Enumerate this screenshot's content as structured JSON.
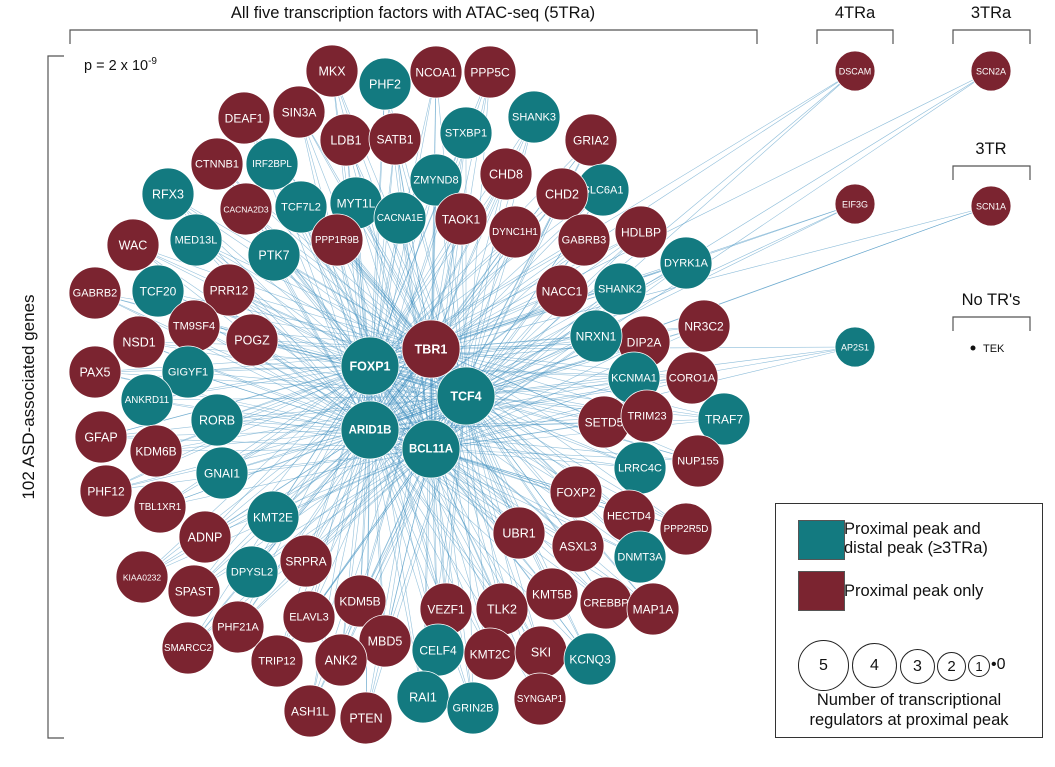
{
  "colors": {
    "teal": "#137a80",
    "maroon": "#7b2430",
    "edge": "#3f8fc0"
  },
  "headers": {
    "main": "All five transcription factors with ATAC-seq (5TRa)",
    "four": "4TRa",
    "three_a": "3TRa",
    "three": "3TR",
    "none": "No TR's"
  },
  "pvalue": {
    "base": "p = 2 x 10",
    "exp": "-9"
  },
  "yaxis_label": "102 ASD-associated genes",
  "hubs": [
    "FOXP1",
    "TBR1",
    "TCF4",
    "ARID1B",
    "BCL11A"
  ],
  "genes": [
    {
      "name": "MKX",
      "type": "proximal_only"
    },
    {
      "name": "PHF2",
      "type": "proximal_distal"
    },
    {
      "name": "NCOA1",
      "type": "proximal_only"
    },
    {
      "name": "PPP5C",
      "type": "proximal_only"
    },
    {
      "name": "DEAF1",
      "type": "proximal_only"
    },
    {
      "name": "SIN3A",
      "type": "proximal_only"
    },
    {
      "name": "LDB1",
      "type": "proximal_only"
    },
    {
      "name": "SATB1",
      "type": "proximal_only"
    },
    {
      "name": "STXBP1",
      "type": "proximal_distal"
    },
    {
      "name": "SHANK3",
      "type": "proximal_distal"
    },
    {
      "name": "CTNNB1",
      "type": "proximal_only"
    },
    {
      "name": "IRF2BPL",
      "type": "proximal_distal"
    },
    {
      "name": "ZMYND8",
      "type": "proximal_distal"
    },
    {
      "name": "GRIA2",
      "type": "proximal_only"
    },
    {
      "name": "CHD8",
      "type": "proximal_only"
    },
    {
      "name": "SLC6A1",
      "type": "proximal_distal"
    },
    {
      "name": "RFX3",
      "type": "proximal_distal"
    },
    {
      "name": "CACNA2D3",
      "type": "proximal_only"
    },
    {
      "name": "TCF7L2",
      "type": "proximal_distal"
    },
    {
      "name": "MYT1L",
      "type": "proximal_distal"
    },
    {
      "name": "CACNA1E",
      "type": "proximal_distal"
    },
    {
      "name": "TAOK1",
      "type": "proximal_only"
    },
    {
      "name": "CHD2",
      "type": "proximal_only"
    },
    {
      "name": "DYNC1H1",
      "type": "proximal_only"
    },
    {
      "name": "WAC",
      "type": "proximal_only"
    },
    {
      "name": "MED13L",
      "type": "proximal_distal"
    },
    {
      "name": "PTK7",
      "type": "proximal_distal"
    },
    {
      "name": "PPP1R9B",
      "type": "proximal_only"
    },
    {
      "name": "GABRB3",
      "type": "proximal_only"
    },
    {
      "name": "HDLBP",
      "type": "proximal_only"
    },
    {
      "name": "DYRK1A",
      "type": "proximal_distal"
    },
    {
      "name": "GABRB2",
      "type": "proximal_only"
    },
    {
      "name": "TCF20",
      "type": "proximal_distal"
    },
    {
      "name": "PRR12",
      "type": "proximal_only"
    },
    {
      "name": "NACC1",
      "type": "proximal_only"
    },
    {
      "name": "SHANK2",
      "type": "proximal_distal"
    },
    {
      "name": "TM9SF4",
      "type": "proximal_only"
    },
    {
      "name": "POGZ",
      "type": "proximal_only"
    },
    {
      "name": "NSD1",
      "type": "proximal_only"
    },
    {
      "name": "DIP2A",
      "type": "proximal_only"
    },
    {
      "name": "NR3C2",
      "type": "proximal_only"
    },
    {
      "name": "NRXN1",
      "type": "proximal_distal"
    },
    {
      "name": "PAX5",
      "type": "proximal_only"
    },
    {
      "name": "GIGYF1",
      "type": "proximal_distal"
    },
    {
      "name": "KCNMA1",
      "type": "proximal_distal"
    },
    {
      "name": "CORO1A",
      "type": "proximal_only"
    },
    {
      "name": "ANKRD11",
      "type": "proximal_distal"
    },
    {
      "name": "RORB",
      "type": "proximal_distal"
    },
    {
      "name": "SETD5",
      "type": "proximal_only"
    },
    {
      "name": "TRIM23",
      "type": "proximal_only"
    },
    {
      "name": "TRAF7",
      "type": "proximal_distal"
    },
    {
      "name": "GFAP",
      "type": "proximal_only"
    },
    {
      "name": "KDM6B",
      "type": "proximal_only"
    },
    {
      "name": "GNAI1",
      "type": "proximal_distal"
    },
    {
      "name": "LRRC4C",
      "type": "proximal_distal"
    },
    {
      "name": "NUP155",
      "type": "proximal_only"
    },
    {
      "name": "PHF12",
      "type": "proximal_only"
    },
    {
      "name": "TBL1XR1",
      "type": "proximal_only"
    },
    {
      "name": "FOXP2",
      "type": "proximal_only"
    },
    {
      "name": "HECTD4",
      "type": "proximal_only"
    },
    {
      "name": "KMT2E",
      "type": "proximal_distal"
    },
    {
      "name": "PPP2R5D",
      "type": "proximal_only"
    },
    {
      "name": "ADNP",
      "type": "proximal_only"
    },
    {
      "name": "UBR1",
      "type": "proximal_only"
    },
    {
      "name": "ASXL3",
      "type": "proximal_only"
    },
    {
      "name": "DNMT3A",
      "type": "proximal_distal"
    },
    {
      "name": "KIAA0232",
      "type": "proximal_only"
    },
    {
      "name": "DPYSL2",
      "type": "proximal_distal"
    },
    {
      "name": "SRPRA",
      "type": "proximal_only"
    },
    {
      "name": "SPAST",
      "type": "proximal_only"
    },
    {
      "name": "KDM5B",
      "type": "proximal_only"
    },
    {
      "name": "VEZF1",
      "type": "proximal_only"
    },
    {
      "name": "TLK2",
      "type": "proximal_only"
    },
    {
      "name": "KMT5B",
      "type": "proximal_only"
    },
    {
      "name": "CREBBP",
      "type": "proximal_only"
    },
    {
      "name": "MAP1A",
      "type": "proximal_only"
    },
    {
      "name": "ELAVL3",
      "type": "proximal_only"
    },
    {
      "name": "PHF21A",
      "type": "proximal_only"
    },
    {
      "name": "SMARCC2",
      "type": "proximal_only"
    },
    {
      "name": "MBD5",
      "type": "proximal_only"
    },
    {
      "name": "CELF4",
      "type": "proximal_distal"
    },
    {
      "name": "KMT2C",
      "type": "proximal_only"
    },
    {
      "name": "SKI",
      "type": "proximal_only"
    },
    {
      "name": "KCNQ3",
      "type": "proximal_distal"
    },
    {
      "name": "TRIP12",
      "type": "proximal_only"
    },
    {
      "name": "ANK2",
      "type": "proximal_only"
    },
    {
      "name": "ASH1L",
      "type": "proximal_only"
    },
    {
      "name": "PTEN",
      "type": "proximal_only"
    },
    {
      "name": "RAI1",
      "type": "proximal_distal"
    },
    {
      "name": "GRIN2B",
      "type": "proximal_distal"
    },
    {
      "name": "SYNGAP1",
      "type": "proximal_only"
    }
  ],
  "outside_genes": [
    {
      "name": "DSCAM",
      "group": "4TRa",
      "type": "proximal_only"
    },
    {
      "name": "EIF3G",
      "group": "4TRa",
      "type": "proximal_only"
    },
    {
      "name": "AP2S1",
      "group": "4TRa",
      "type": "proximal_distal"
    },
    {
      "name": "SCN2A",
      "group": "3TRa",
      "type": "proximal_only"
    },
    {
      "name": "SCN1A",
      "group": "3TR",
      "type": "proximal_only"
    }
  ],
  "no_tr_gene": "TEK",
  "legend": {
    "teal_label_line1": "Proximal peak and",
    "teal_label_line2": "distal peak (≥3TRa)",
    "maroon_label": "Proximal peak only",
    "size_values": [
      "5",
      "4",
      "3",
      "2",
      "1",
      "0"
    ],
    "caption_line1": "Number of transcriptional",
    "caption_line2": "regulators at proximal peak"
  }
}
